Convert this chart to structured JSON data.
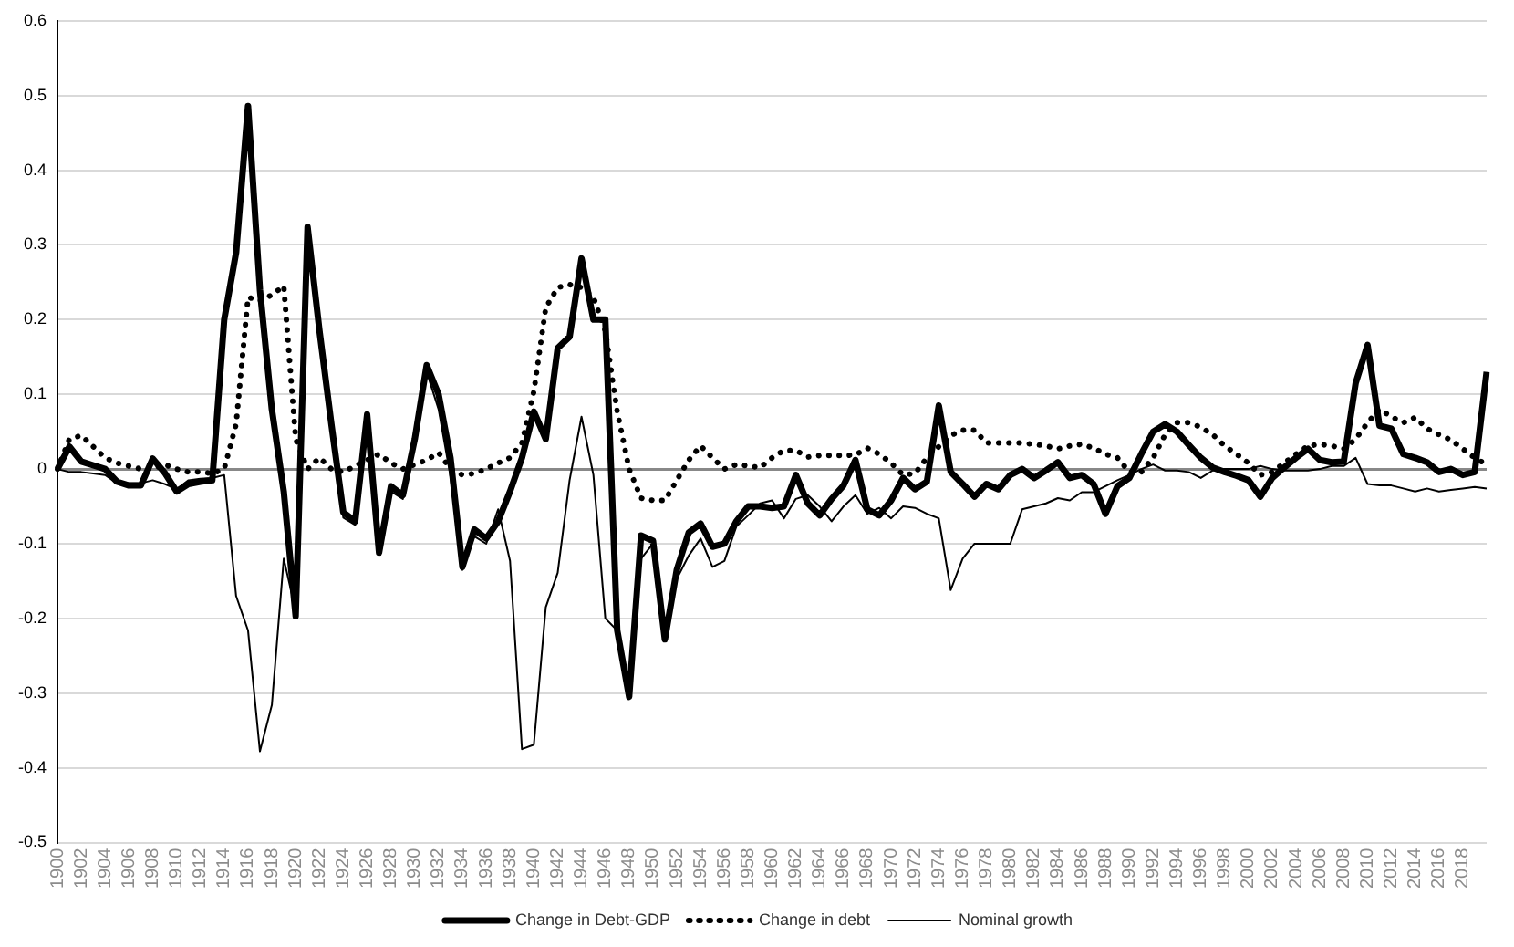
{
  "chart_data": {
    "type": "line",
    "categories": [
      "1900",
      null,
      "1902",
      null,
      "1904",
      null,
      "1906",
      null,
      "1908",
      null,
      "1910",
      null,
      "1912",
      null,
      "1914",
      null,
      "1916",
      null,
      "1918",
      null,
      "1920",
      null,
      "1922",
      null,
      "1924",
      null,
      "1926",
      null,
      "1928",
      null,
      "1930",
      null,
      "1932",
      null,
      "1934",
      null,
      "1936",
      null,
      "1938",
      null,
      "1940",
      null,
      "1942",
      null,
      "1944",
      null,
      "1946",
      null,
      "1948",
      null,
      "1950",
      null,
      "1952",
      null,
      "1954",
      null,
      "1956",
      null,
      "1958",
      null,
      "1960",
      null,
      "1962",
      null,
      "1964",
      null,
      "1966",
      null,
      "1968",
      null,
      "1970",
      null,
      "1972",
      null,
      "1974",
      null,
      "1976",
      null,
      "1978",
      null,
      "1980",
      null,
      "1982",
      null,
      "1984",
      null,
      "1986",
      null,
      "1988",
      null,
      "1990",
      null,
      "1992",
      null,
      "1994",
      null,
      "1996",
      null,
      "1998",
      null,
      "2000",
      null,
      "2002",
      null,
      "2004",
      null,
      "2006",
      null,
      "2008",
      null,
      "2010",
      null,
      "2012",
      null,
      "2014",
      null,
      "2016",
      null,
      "2018",
      null,
      null
    ],
    "series": [
      {
        "name": "Change in Debt-GDP",
        "color": "#000000",
        "line_style": "solid",
        "values": [
          0,
          0.03,
          0.01,
          0.005,
          0,
          -0.017,
          -0.022,
          -0.022,
          0.014,
          -0.005,
          -0.03,
          -0.02,
          -0.017,
          -0.015,
          0.2,
          0.29,
          0.486,
          0.24,
          0.08,
          -0.03,
          -0.197,
          0.324,
          0.185,
          0.06,
          -0.058,
          -0.07,
          0.073,
          -0.112,
          -0.023,
          -0.035,
          0.04,
          0.139,
          0.1,
          0.015,
          -0.131,
          -0.081,
          -0.093,
          -0.07,
          -0.03,
          0.015,
          0.077,
          0.04,
          0.162,
          0.177,
          0.282,
          0.2,
          0.2,
          -0.216,
          -0.305,
          -0.089,
          -0.096,
          -0.228,
          -0.135,
          -0.085,
          -0.073,
          -0.104,
          -0.1,
          -0.07,
          -0.05,
          -0.05,
          -0.052,
          -0.05,
          -0.008,
          -0.046,
          -0.062,
          -0.04,
          -0.022,
          0.012,
          -0.054,
          -0.062,
          -0.042,
          -0.012,
          -0.027,
          -0.017,
          0.085,
          -0.004,
          -0.02,
          -0.037,
          -0.02,
          -0.027,
          -0.008,
          0,
          -0.012,
          -0.002,
          0.009,
          -0.012,
          -0.008,
          -0.02,
          -0.06,
          -0.023,
          -0.012,
          0.02,
          0.05,
          0.06,
          0.05,
          0.032,
          0.015,
          0.002,
          -0.004,
          -0.009,
          -0.015,
          -0.037,
          -0.012,
          0.002,
          0.015,
          0.027,
          0.012,
          0.009,
          0.01,
          0.115,
          0.166,
          0.058,
          0.054,
          0.02,
          0.015,
          0.009,
          -0.004,
          0,
          -0.008,
          -0.004,
          0.13
        ]
      },
      {
        "name": "Change in debt",
        "color": "#000000",
        "line_style": "dotted",
        "values": [
          0,
          0.04,
          0.045,
          0.03,
          0.015,
          0.008,
          0.004,
          0,
          0,
          0.006,
          0,
          -0.004,
          -0.004,
          -0.006,
          0,
          0.06,
          0.23,
          0.225,
          0.233,
          0.245,
          0.04,
          0,
          0.015,
          0,
          -0.004,
          0.004,
          0.012,
          0.02,
          0.008,
          0,
          0.006,
          0.012,
          0.022,
          0,
          -0.008,
          -0.006,
          0,
          0.008,
          0.015,
          0.035,
          0.104,
          0.216,
          0.243,
          0.247,
          0.243,
          0.23,
          0.185,
          0.077,
          0,
          -0.039,
          -0.042,
          -0.042,
          -0.015,
          0.012,
          0.031,
          0.015,
          0,
          0.006,
          0.004,
          0.002,
          0.015,
          0.025,
          0.025,
          0.016,
          0.018,
          0.018,
          0.018,
          0.019,
          0.028,
          0.02,
          0.008,
          -0.008,
          -0.006,
          0.015,
          0.03,
          0.045,
          0.052,
          0.052,
          0.035,
          0.035,
          0.035,
          0.035,
          0.033,
          0.031,
          0.027,
          0.031,
          0.033,
          0.028,
          0.02,
          0.015,
          -0.004,
          -0.004,
          0.015,
          0.046,
          0.062,
          0.062,
          0.056,
          0.046,
          0.031,
          0.02,
          0.008,
          -0.008,
          -0.004,
          0.008,
          0.02,
          0.031,
          0.033,
          0.031,
          0.027,
          0.04,
          0.062,
          0.08,
          0.07,
          0.062,
          0.069,
          0.054,
          0.046,
          0.039,
          0.027,
          0.015,
          0.006
        ]
      },
      {
        "name": "Nominal growth",
        "color": "#000000",
        "line_style": "solid",
        "values": [
          0,
          -0.004,
          -0.004,
          -0.006,
          -0.008,
          -0.019,
          -0.019,
          -0.019,
          -0.015,
          -0.02,
          -0.027,
          -0.015,
          -0.013,
          -0.012,
          -0.008,
          -0.17,
          -0.216,
          -0.378,
          -0.316,
          -0.12,
          -0.19,
          0.31,
          0.17,
          0.05,
          -0.065,
          -0.075,
          0.06,
          -0.115,
          -0.03,
          -0.04,
          0.03,
          0.13,
          0.08,
          -0.01,
          -0.135,
          -0.09,
          -0.1,
          -0.054,
          -0.123,
          -0.375,
          -0.369,
          -0.185,
          -0.139,
          -0.015,
          0.07,
          -0.008,
          -0.2,
          -0.216,
          -0.29,
          -0.12,
          -0.1,
          -0.22,
          -0.147,
          -0.116,
          -0.093,
          -0.131,
          -0.123,
          -0.077,
          -0.062,
          -0.046,
          -0.042,
          -0.066,
          -0.04,
          -0.035,
          -0.05,
          -0.07,
          -0.05,
          -0.035,
          -0.06,
          -0.052,
          -0.066,
          -0.05,
          -0.052,
          -0.06,
          -0.066,
          -0.162,
          -0.12,
          -0.1,
          -0.1,
          -0.1,
          -0.1,
          -0.054,
          -0.05,
          -0.046,
          -0.039,
          -0.042,
          -0.031,
          -0.031,
          -0.023,
          -0.015,
          -0.008,
          0,
          0.006,
          -0.002,
          -0.002,
          -0.004,
          -0.012,
          -0.002,
          0,
          0,
          0,
          0.004,
          0,
          -0.002,
          -0.002,
          -0.002,
          0,
          0.004,
          0.004,
          0.015,
          -0.02,
          -0.022,
          -0.022,
          -0.026,
          -0.03,
          -0.026,
          -0.03,
          -0.028,
          -0.026,
          -0.024,
          -0.026
        ]
      }
    ],
    "ylim": [
      -0.5,
      0.6
    ],
    "yticks": [
      -0.5,
      -0.4,
      -0.3,
      -0.2,
      -0.1,
      0,
      0.1,
      0.2,
      0.3,
      0.4,
      0.5,
      0.6
    ],
    "grid": "y",
    "legend": "bottom",
    "marker": "none"
  }
}
